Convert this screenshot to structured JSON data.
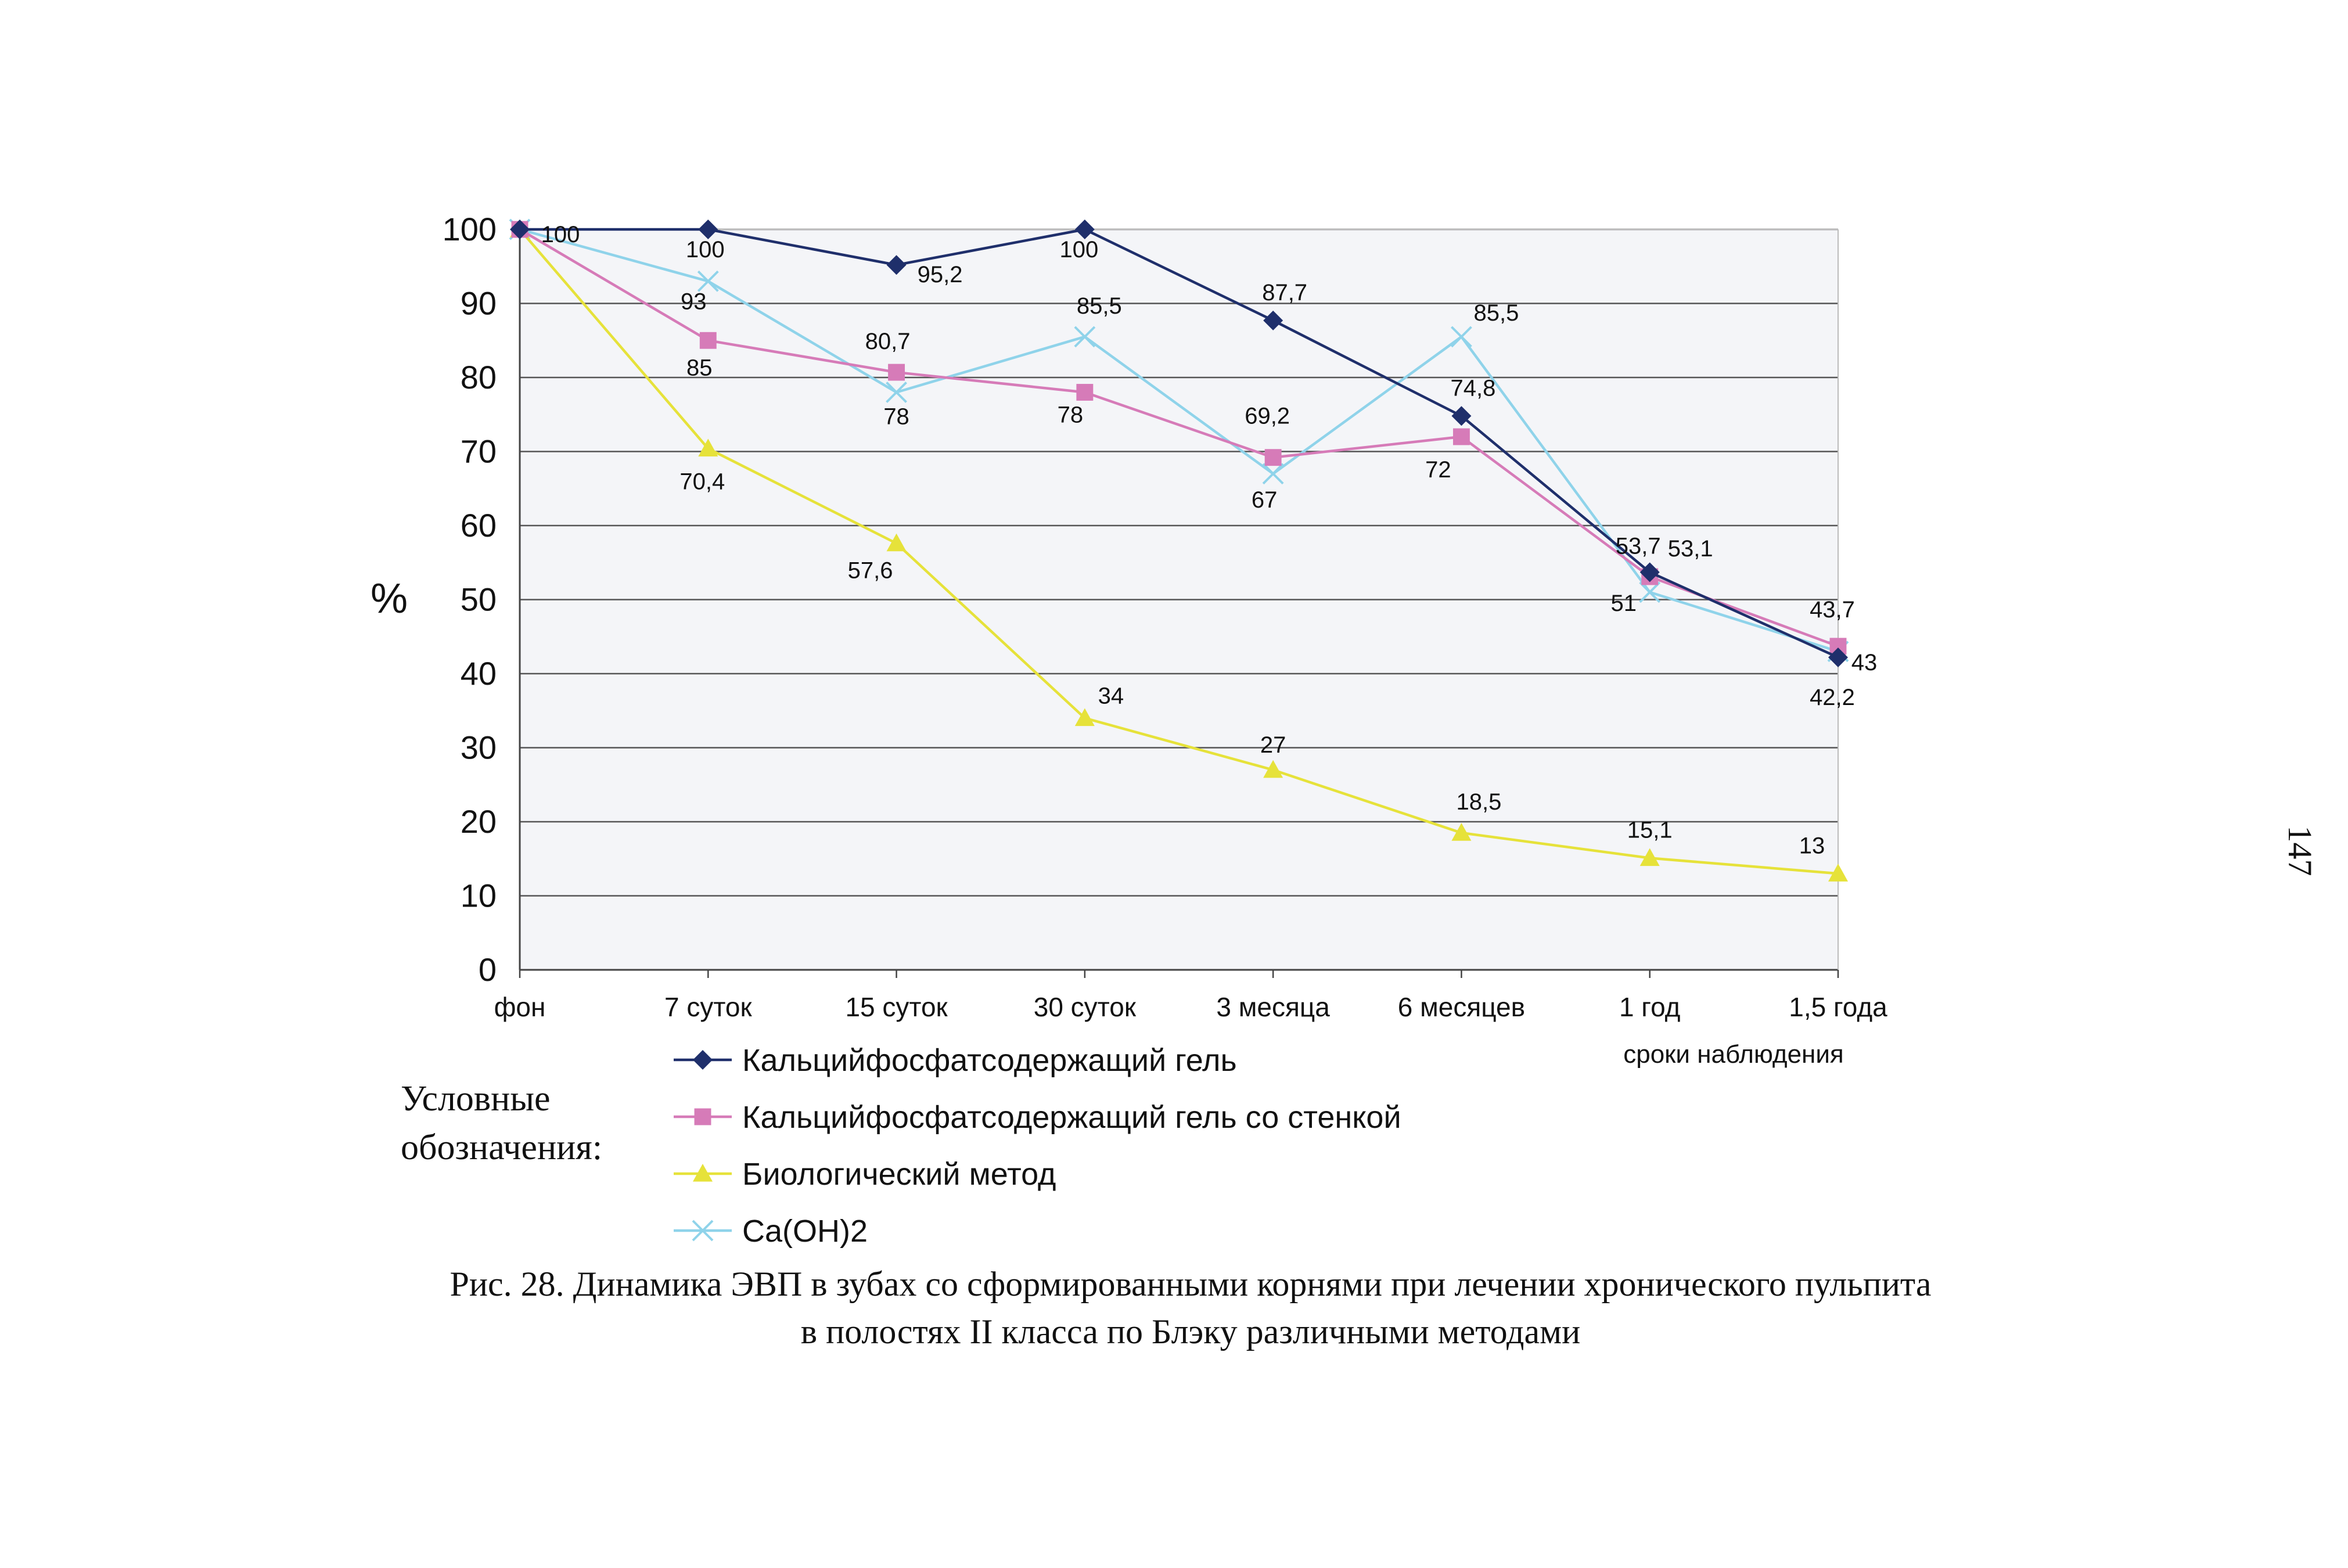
{
  "chart_data": {
    "type": "line",
    "ylabel": "%",
    "xlabel": "сроки наблюдения",
    "ylim": [
      0,
      100
    ],
    "yticks": [
      "0",
      "10",
      "20",
      "30",
      "40",
      "50",
      "60",
      "70",
      "80",
      "90",
      "100"
    ],
    "categories": [
      "фон",
      "7 суток",
      "15 суток",
      "30 суток",
      "3 месяца",
      "6 месяцев",
      "1 год",
      "1,5 года"
    ],
    "grid": true,
    "series": [
      {
        "name": "Кальцийфосфатсодержащий гель",
        "color": "#1f2f6b",
        "marker": "diamond",
        "values": [
          100,
          100,
          95.2,
          100,
          87.7,
          74.8,
          53.7,
          42.2
        ],
        "labels": [
          "100",
          "100",
          "95,2",
          "100",
          "87,7",
          "74,8",
          "53,7",
          "42,2"
        ]
      },
      {
        "name": "Кальцийфосфатсодержащий гель со стенкой",
        "color": "#d67bb8",
        "marker": "square",
        "values": [
          100,
          85,
          80.7,
          78,
          69.2,
          72,
          53.1,
          43.7
        ],
        "labels": [
          "",
          "85",
          "80,7",
          "78",
          "69,2",
          "72",
          "53,1",
          "43,7"
        ]
      },
      {
        "name": "Биологический метод",
        "color": "#e6e23a",
        "marker": "triangle",
        "values": [
          100,
          70.4,
          57.6,
          34,
          27,
          18.5,
          15.1,
          13
        ],
        "labels": [
          "",
          "70,4",
          "57,6",
          "34",
          "27",
          "18,5",
          "15,1",
          "13"
        ]
      },
      {
        "name": "Ca(OH)2",
        "color": "#8fd3ea",
        "marker": "x",
        "values": [
          100,
          93,
          78,
          85.5,
          67,
          85.5,
          51,
          43
        ],
        "labels": [
          "",
          "93",
          "78",
          "85,5",
          "67",
          "85,5",
          "51",
          "43"
        ]
      }
    ]
  },
  "legend_heading": [
    "Условные",
    "обозначения:"
  ],
  "caption": [
    "Рис. 28. Динамика ЭВП в зубах со сформированными корнями при лечении хронического пульпита",
    "в полостях II класса по Блэку различными методами"
  ],
  "page_number": "147"
}
